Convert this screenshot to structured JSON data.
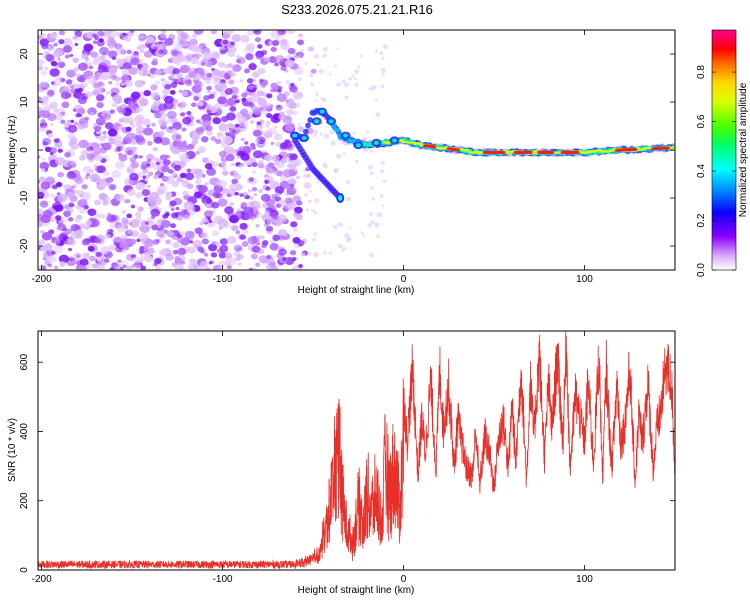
{
  "title": "S233.2026.075.21.21.R16",
  "colorbar": {
    "label": "Normalized spectral amplitude",
    "ticks": [
      "0.0",
      "0.2",
      "0.4",
      "0.6",
      "0.8"
    ],
    "range": [
      0,
      0.97
    ]
  },
  "chart_data": [
    {
      "type": "heatmap",
      "name": "spectrogram",
      "xlabel": "Height of straight line (km)",
      "ylabel": "Frequency (Hz)",
      "xlim": [
        -202,
        150
      ],
      "ylim": [
        -25,
        25
      ],
      "xticks": [
        -200,
        -100,
        0,
        100
      ],
      "xtick_labels": [
        "-200",
        "-100",
        "0",
        "100"
      ],
      "yticks": [
        -20,
        -10,
        0,
        10,
        20
      ],
      "ytick_labels": [
        "-20",
        "-10",
        "0",
        "10",
        "20"
      ],
      "noise_region_x": [
        -202,
        -60
      ],
      "signal_track": [
        {
          "x": -60,
          "y": 3
        },
        {
          "x": -55,
          "y": 2.5
        },
        {
          "x": -50,
          "y": 8
        },
        {
          "x": -45,
          "y": 8
        },
        {
          "x": -40,
          "y": 6
        },
        {
          "x": -35,
          "y": 3
        },
        {
          "x": -30,
          "y": 2
        },
        {
          "x": -20,
          "y": 1
        },
        {
          "x": -10,
          "y": 1.5
        },
        {
          "x": 0,
          "y": 2
        },
        {
          "x": 10,
          "y": 1
        },
        {
          "x": 20,
          "y": 0.5
        },
        {
          "x": 40,
          "y": -0.5
        },
        {
          "x": 60,
          "y": -0.5
        },
        {
          "x": 80,
          "y": -0.5
        },
        {
          "x": 100,
          "y": -0.5
        },
        {
          "x": 120,
          "y": 0
        },
        {
          "x": 150,
          "y": 0.5
        }
      ],
      "branch_track": [
        {
          "x": -60,
          "y": 2
        },
        {
          "x": -55,
          "y": -1
        },
        {
          "x": -50,
          "y": -4
        },
        {
          "x": -45,
          "y": -6
        },
        {
          "x": -40,
          "y": -8
        },
        {
          "x": -35,
          "y": -10
        }
      ]
    },
    {
      "type": "line",
      "name": "snr",
      "xlabel": "Height of straight line (km)",
      "ylabel": "SNR (10 * v/v)",
      "xlim": [
        -202,
        150
      ],
      "ylim": [
        0,
        690
      ],
      "xticks": [
        -200,
        -100,
        0,
        100
      ],
      "xtick_labels": [
        "-200",
        "-100",
        "0",
        "100"
      ],
      "yticks": [
        0,
        200,
        400,
        600
      ],
      "ytick_labels": [
        "0",
        "200",
        "400",
        "600"
      ],
      "color": "#e8302a",
      "series": [
        {
          "name": "SNR",
          "x": [
            -202,
            -180,
            -160,
            -140,
            -120,
            -100,
            -80,
            -60,
            -55,
            -50,
            -45,
            -42,
            -40,
            -38,
            -35,
            -32,
            -30,
            -28,
            -25,
            -22,
            -20,
            -18,
            -15,
            -12,
            -10,
            -8,
            -5,
            -2,
            0,
            2,
            5,
            8,
            10,
            12,
            15,
            18,
            20,
            22,
            25,
            28,
            30,
            32,
            35,
            38,
            40,
            42,
            45,
            48,
            50,
            52,
            55,
            58,
            60,
            62,
            65,
            68,
            70,
            72,
            75,
            78,
            80,
            82,
            85,
            88,
            90,
            92,
            95,
            98,
            100,
            102,
            105,
            108,
            110,
            112,
            115,
            118,
            120,
            122,
            125,
            128,
            130,
            132,
            135,
            138,
            140,
            142,
            145,
            148,
            150
          ],
          "y": [
            15,
            16,
            15,
            17,
            16,
            15,
            16,
            18,
            30,
            60,
            120,
            200,
            300,
            420,
            500,
            250,
            180,
            120,
            320,
            200,
            380,
            260,
            330,
            180,
            460,
            300,
            400,
            220,
            520,
            380,
            600,
            280,
            450,
            350,
            560,
            300,
            600,
            420,
            550,
            300,
            450,
            380,
            300,
            280,
            420,
            250,
            400,
            330,
            240,
            370,
            450,
            300,
            500,
            310,
            600,
            260,
            560,
            400,
            640,
            330,
            560,
            420,
            640,
            380,
            680,
            300,
            520,
            440,
            380,
            560,
            320,
            640,
            270,
            600,
            300,
            560,
            380,
            420,
            600,
            260,
            460,
            380,
            560,
            300,
            420,
            470,
            610,
            560,
            300
          ]
        }
      ]
    }
  ]
}
